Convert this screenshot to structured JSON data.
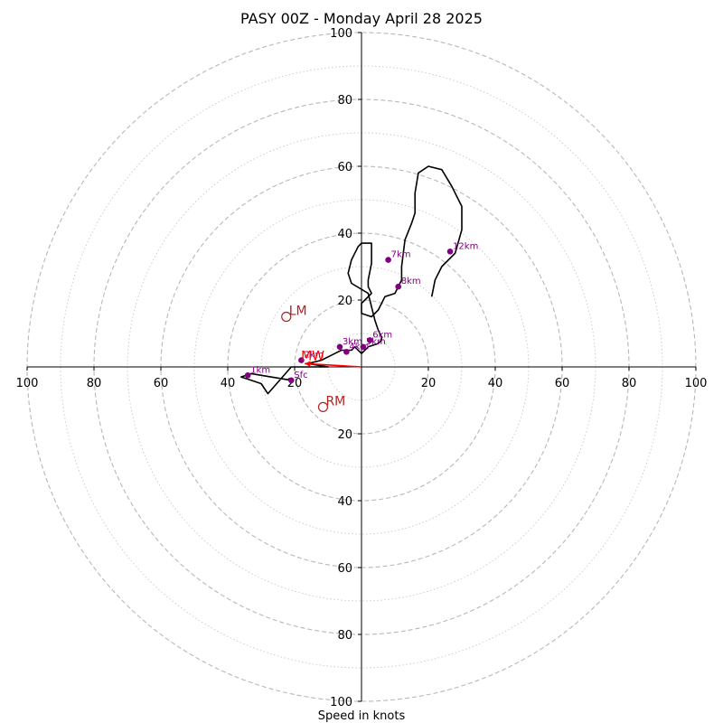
{
  "chart_data": {
    "type": "line",
    "title": "PASY 00Z - Monday April 28 2025",
    "xlabel": "Speed in knots",
    "axis_max": 100,
    "ring_step": 20,
    "tick_labels": [
      "100",
      "80",
      "60",
      "40",
      "20",
      "20",
      "40",
      "60",
      "80",
      "100"
    ],
    "grid": true,
    "colors": {
      "hodograph": "#000000",
      "height_markers": "#800080",
      "storm_motion": "#b22222",
      "mean_wind": "#ff0000",
      "grid": "#b0b0b0"
    },
    "hodograph": {
      "u": [
        -21,
        -33,
        -36,
        -33,
        -30,
        -28,
        -21,
        -10,
        -16,
        -12,
        -8,
        -6,
        -3,
        -2,
        -2,
        0,
        0,
        2,
        5,
        6,
        6,
        5,
        4,
        3,
        2,
        -3,
        -4,
        -3,
        -2,
        -1,
        0,
        3,
        3,
        2,
        2,
        3,
        1,
        0,
        0,
        3,
        5,
        7,
        10,
        11,
        12,
        12,
        12,
        13,
        15,
        16,
        16,
        16,
        17,
        20,
        24,
        27,
        30,
        30,
        28,
        24,
        22,
        21
      ],
      "v": [
        -4,
        -2,
        -3,
        -4,
        -5,
        -8,
        0,
        0,
        1,
        2,
        4,
        5,
        5,
        6,
        6,
        4,
        4,
        6,
        7,
        8,
        9,
        11,
        14,
        18,
        22,
        25,
        28,
        32,
        34,
        36,
        37,
        37,
        31,
        26,
        24,
        22,
        20,
        19,
        16,
        15,
        17,
        21,
        22,
        24,
        26,
        28,
        30,
        38,
        43,
        46,
        49,
        52,
        58,
        60,
        59,
        54,
        48,
        41,
        34,
        30,
        26,
        21
      ]
    },
    "height_markers": [
      {
        "label": "Sfc",
        "u": -21,
        "v": -4
      },
      {
        "label": "1km",
        "u": -34,
        "v": -2.5
      },
      {
        "label": "2km",
        "u": -18,
        "v": 2
      },
      {
        "label": "3km",
        "u": -6.5,
        "v": 6
      },
      {
        "label": "4km",
        "u": -4.5,
        "v": 4.5
      },
      {
        "label": "5km",
        "u": 0.5,
        "v": 6
      },
      {
        "label": "6km",
        "u": 2.5,
        "v": 8
      },
      {
        "label": "7km",
        "u": 8,
        "v": 32
      },
      {
        "label": "8km",
        "u": 11,
        "v": 24
      },
      {
        "label": "12km",
        "u": 26.5,
        "v": 34.5
      }
    ],
    "storm_motion": [
      {
        "label": "LM",
        "u": -22.5,
        "v": 15
      },
      {
        "label": "RM",
        "u": -11.5,
        "v": -12
      }
    ],
    "mean_wind": {
      "label": "MW",
      "u": -17,
      "v": 1
    }
  }
}
